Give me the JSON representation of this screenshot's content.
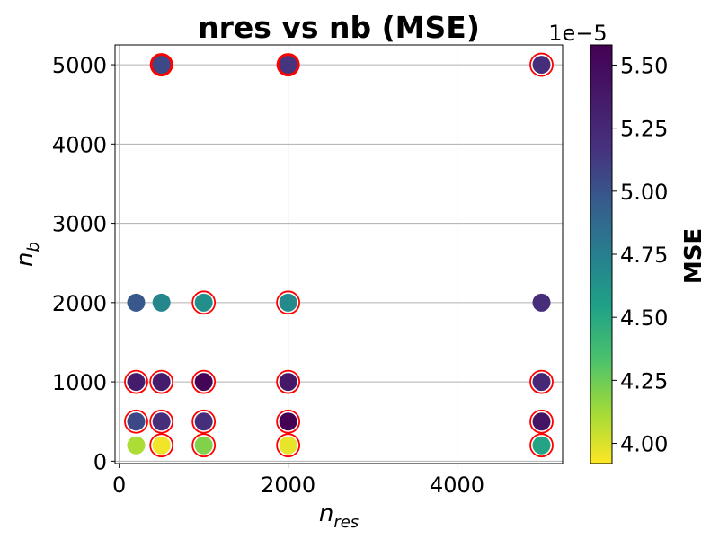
{
  "chart_data": {
    "type": "scatter",
    "title": "nres vs nb (MSE)",
    "xlabel": "n",
    "xlabel_sub": "res",
    "ylabel": "n",
    "ylabel_sub": "b",
    "xlim": [
      -50,
      5250
    ],
    "ylim": [
      -30,
      5250
    ],
    "xticks": [
      0,
      2000,
      4000
    ],
    "yticks": [
      0,
      1000,
      2000,
      3000,
      4000,
      5000
    ],
    "grid": true,
    "colormap": "viridis_r",
    "colorbar": {
      "label": "MSE",
      "exponent_label": "1e−5",
      "range": [
        3.92,
        5.58
      ],
      "ticks": [
        "4.00",
        "4.25",
        "4.50",
        "4.75",
        "5.00",
        "5.25",
        "5.50"
      ],
      "tick_values": [
        4.0,
        4.25,
        4.5,
        4.75,
        5.0,
        5.25,
        5.5
      ]
    },
    "points": [
      {
        "x": 500,
        "y": 5000,
        "mse": 5.05,
        "highlight": "thick"
      },
      {
        "x": 2000,
        "y": 5000,
        "mse": 5.15,
        "highlight": "thick"
      },
      {
        "x": 5000,
        "y": 5000,
        "mse": 5.2,
        "highlight": "ring"
      },
      {
        "x": 200,
        "y": 2000,
        "mse": 4.98,
        "highlight": "none"
      },
      {
        "x": 500,
        "y": 2000,
        "mse": 4.7,
        "highlight": "none"
      },
      {
        "x": 1000,
        "y": 2000,
        "mse": 4.65,
        "highlight": "ring"
      },
      {
        "x": 2000,
        "y": 2000,
        "mse": 4.68,
        "highlight": "ring"
      },
      {
        "x": 5000,
        "y": 2000,
        "mse": 5.2,
        "highlight": "none"
      },
      {
        "x": 200,
        "y": 1000,
        "mse": 5.35,
        "highlight": "ring"
      },
      {
        "x": 500,
        "y": 1000,
        "mse": 5.35,
        "highlight": "ring"
      },
      {
        "x": 1000,
        "y": 1000,
        "mse": 5.55,
        "highlight": "ring"
      },
      {
        "x": 2000,
        "y": 1000,
        "mse": 5.38,
        "highlight": "ring"
      },
      {
        "x": 5000,
        "y": 1000,
        "mse": 5.25,
        "highlight": "ring"
      },
      {
        "x": 200,
        "y": 500,
        "mse": 5.05,
        "highlight": "ring"
      },
      {
        "x": 500,
        "y": 500,
        "mse": 5.2,
        "highlight": "ring"
      },
      {
        "x": 1000,
        "y": 500,
        "mse": 5.2,
        "highlight": "ring"
      },
      {
        "x": 2000,
        "y": 500,
        "mse": 5.58,
        "highlight": "ring"
      },
      {
        "x": 5000,
        "y": 500,
        "mse": 5.42,
        "highlight": "ring"
      },
      {
        "x": 200,
        "y": 200,
        "mse": 4.1,
        "highlight": "none"
      },
      {
        "x": 500,
        "y": 200,
        "mse": 3.95,
        "highlight": "ring"
      },
      {
        "x": 1000,
        "y": 200,
        "mse": 4.2,
        "highlight": "ring"
      },
      {
        "x": 2000,
        "y": 200,
        "mse": 3.97,
        "highlight": "ring"
      },
      {
        "x": 5000,
        "y": 200,
        "mse": 4.52,
        "highlight": "ring"
      }
    ]
  }
}
